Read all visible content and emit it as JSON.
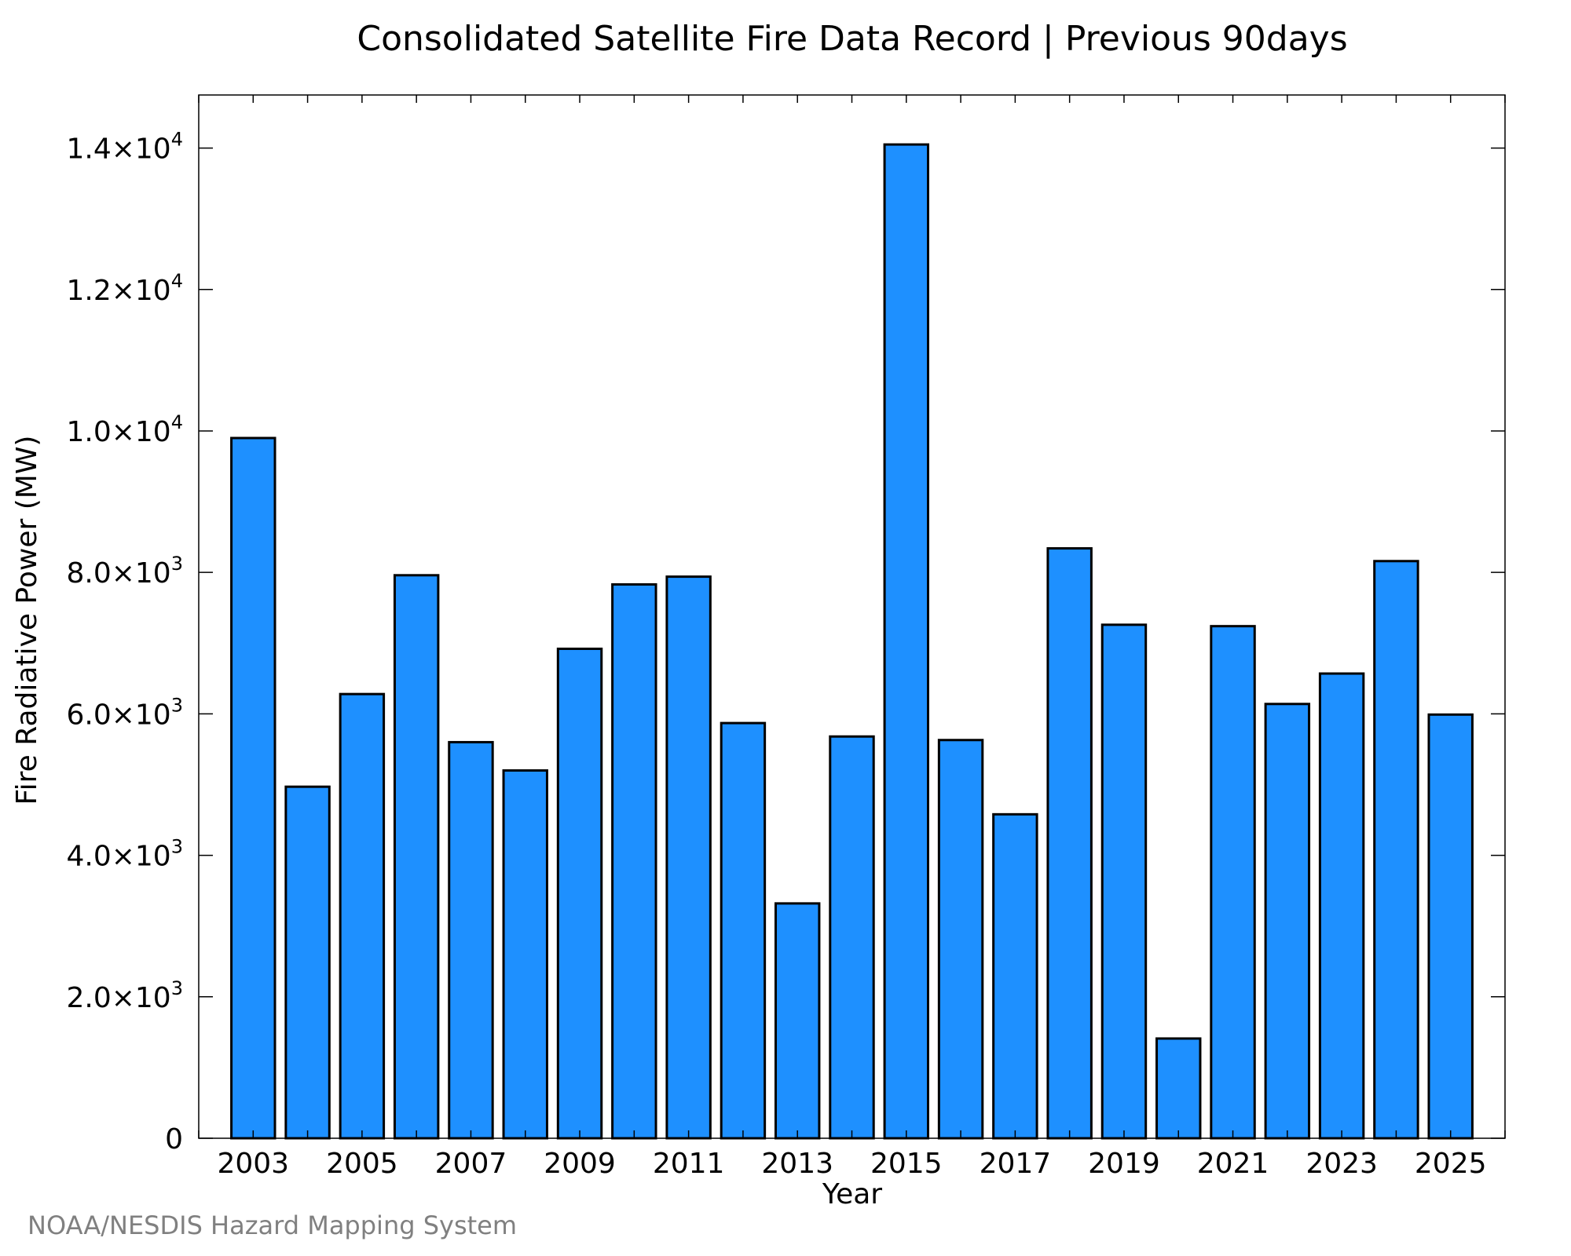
{
  "chart_data": {
    "type": "bar",
    "title": "Consolidated Satellite Fire Data Record | Previous 90days",
    "xlabel": "Year",
    "ylabel": "Fire Radiative Power (MW)",
    "categories": [
      "2003",
      "2004",
      "2005",
      "2006",
      "2007",
      "2008",
      "2009",
      "2010",
      "2011",
      "2012",
      "2013",
      "2014",
      "2015",
      "2016",
      "2017",
      "2018",
      "2019",
      "2020",
      "2021",
      "2022",
      "2023",
      "2024",
      "2025"
    ],
    "values": [
      9900,
      4970,
      6280,
      7960,
      5600,
      5200,
      6920,
      7830,
      7940,
      5870,
      3320,
      5680,
      14050,
      5630,
      4580,
      8340,
      7260,
      1410,
      7240,
      6140,
      6570,
      8160,
      5990
    ],
    "x_tick_labels": [
      "2003",
      "2005",
      "2007",
      "2009",
      "2011",
      "2013",
      "2015",
      "2017",
      "2019",
      "2021",
      "2023",
      "2025"
    ],
    "y_ticks": [
      {
        "value": 0,
        "mantissa": "0",
        "exp": ""
      },
      {
        "value": 2000,
        "mantissa": "2.0×10",
        "exp": "3"
      },
      {
        "value": 4000,
        "mantissa": "4.0×10",
        "exp": "3"
      },
      {
        "value": 6000,
        "mantissa": "6.0×10",
        "exp": "3"
      },
      {
        "value": 8000,
        "mantissa": "8.0×10",
        "exp": "3"
      },
      {
        "value": 10000,
        "mantissa": "1.0×10",
        "exp": "4"
      },
      {
        "value": 12000,
        "mantissa": "1.2×10",
        "exp": "4"
      },
      {
        "value": 14000,
        "mantissa": "1.4×10",
        "exp": "4"
      }
    ],
    "ylim": [
      0,
      14750
    ],
    "xlim": [
      2002.0,
      2026.0
    ],
    "grid": false,
    "bar_color": "#1e90ff",
    "edge_color": "#000000"
  },
  "credit": "NOAA/NESDIS Hazard Mapping System"
}
